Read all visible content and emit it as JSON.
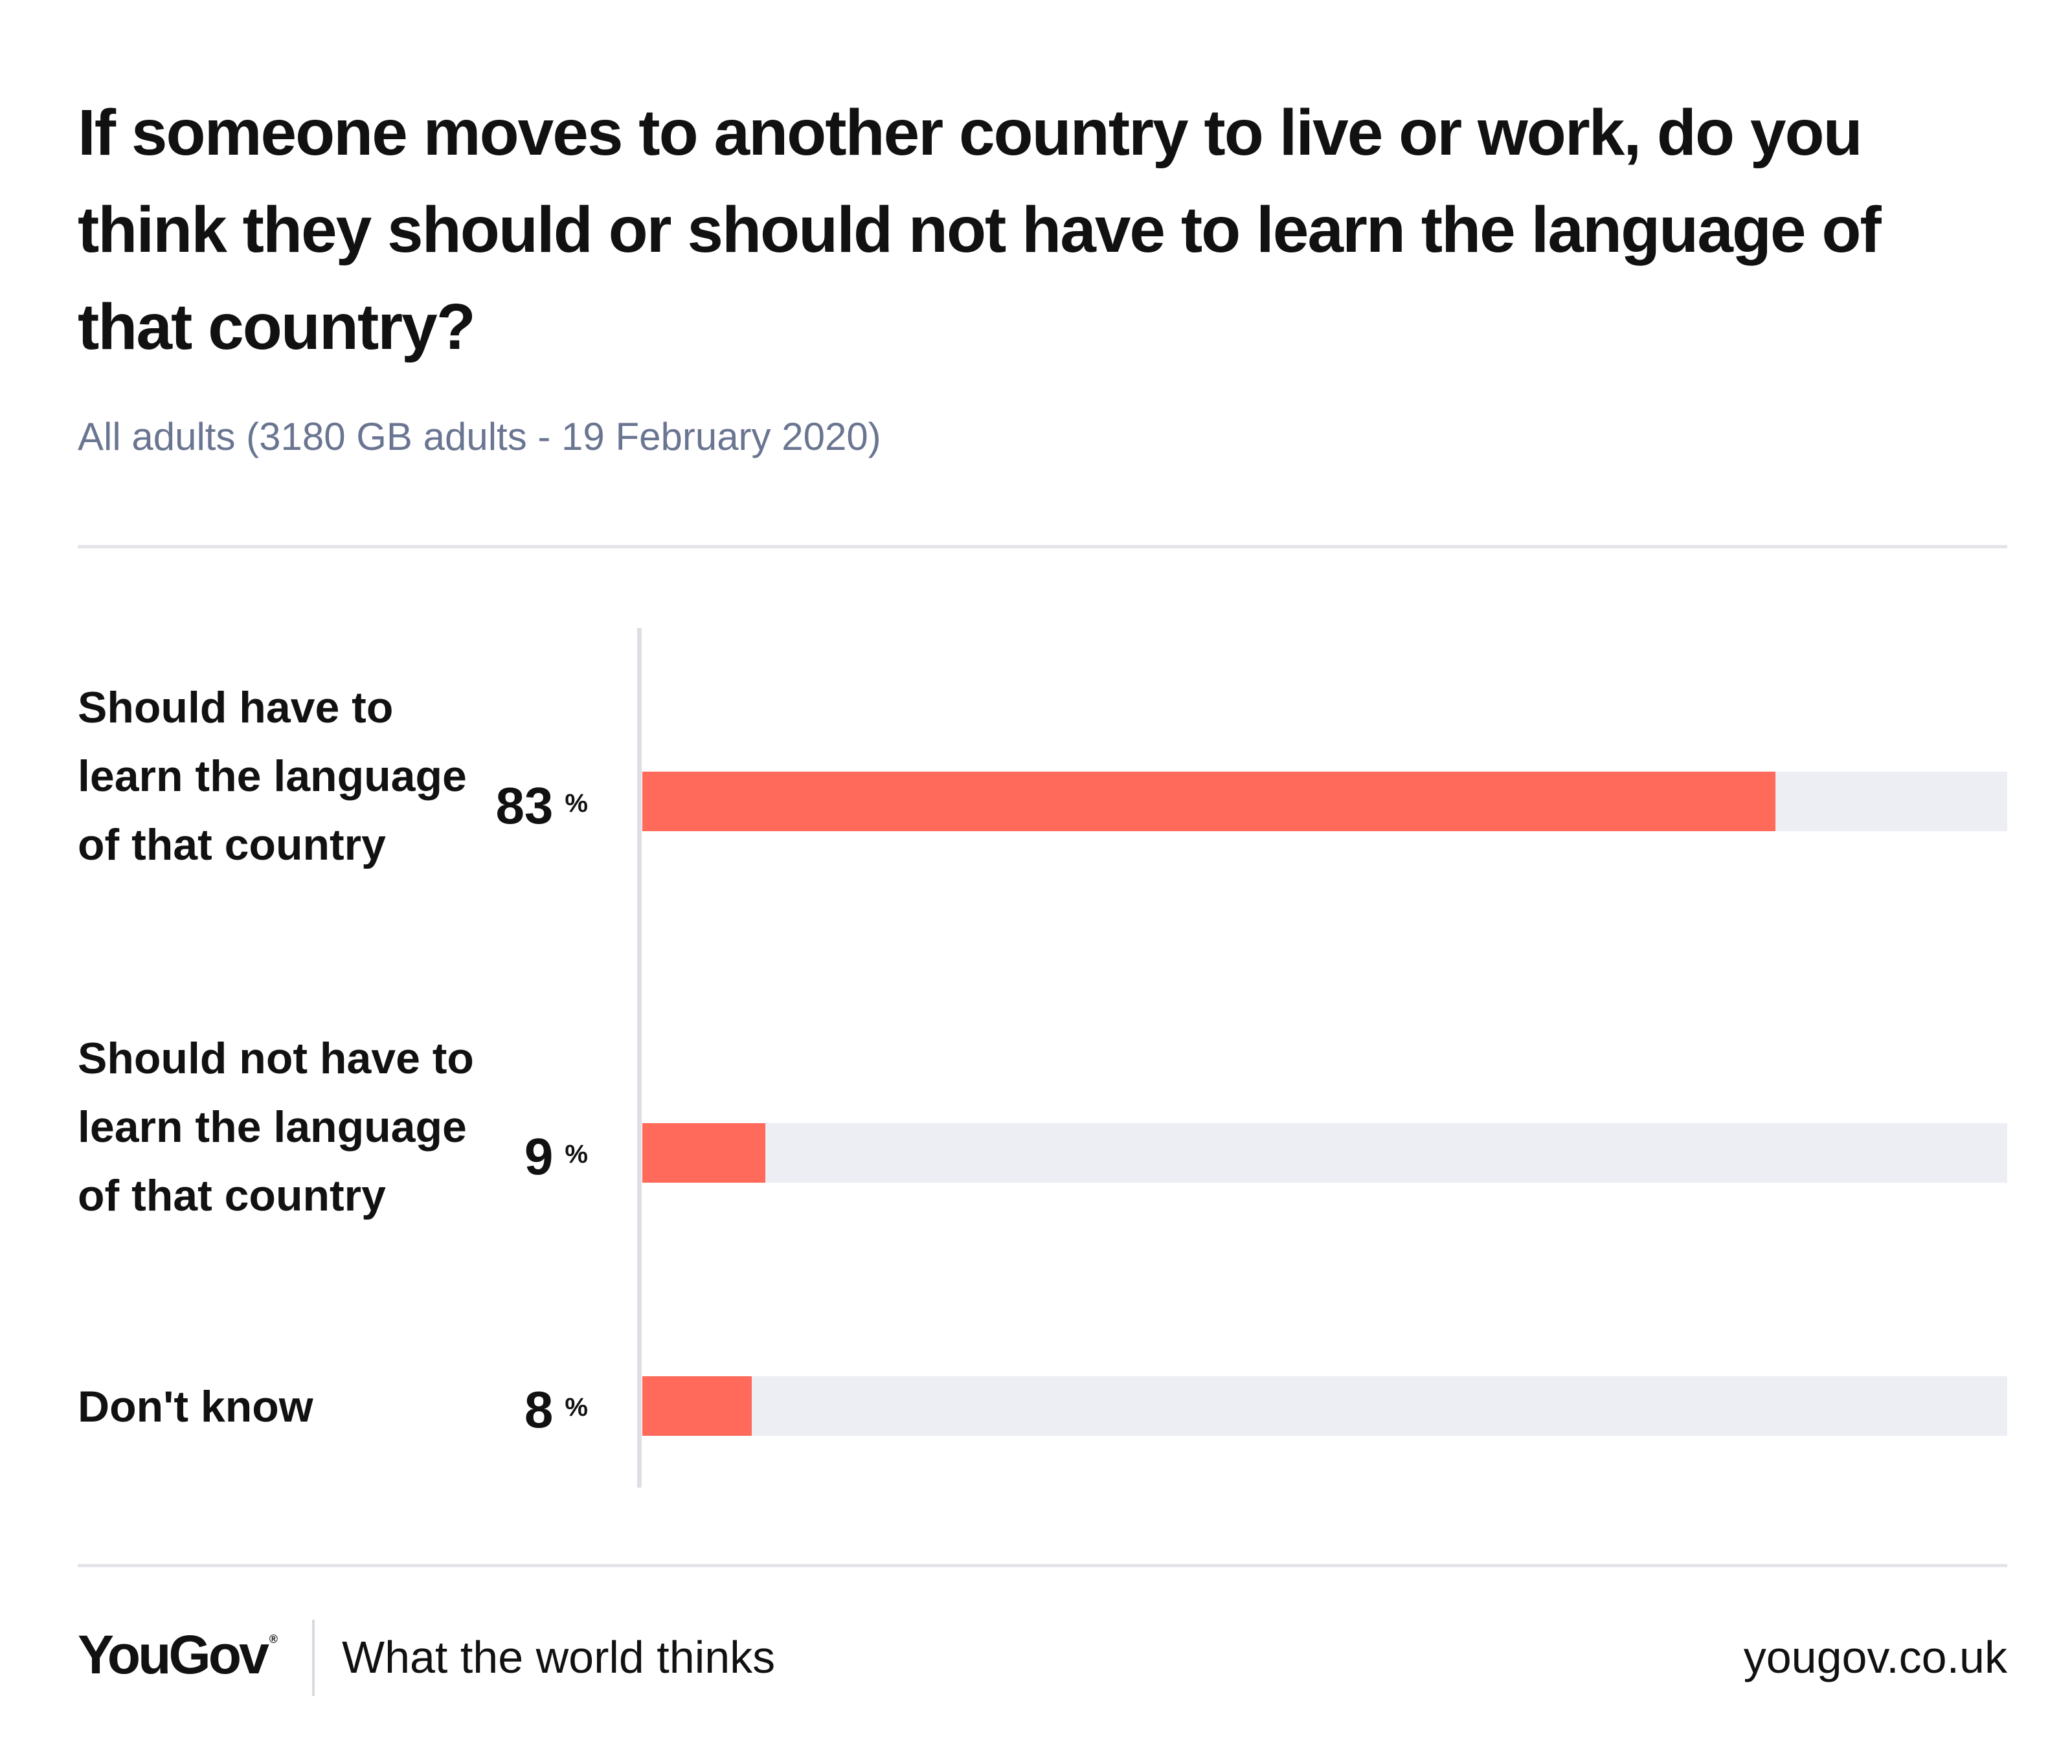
{
  "header": {
    "title": "If someone moves to another country to live or work, do you think they should or should not have to learn the language of that country?",
    "subtitle": "All adults (3180 GB adults - 19 February 2020)"
  },
  "chart_data": {
    "type": "bar",
    "orientation": "horizontal",
    "categories": [
      "Should have to learn the language of that country",
      "Should not have to learn the language of that country",
      "Don't know"
    ],
    "values": [
      83,
      9,
      8
    ],
    "unit": "%",
    "xlim": [
      0,
      100
    ],
    "colors": {
      "bar": "#ff6a5a",
      "track": "#eceef3"
    }
  },
  "footer": {
    "logo": "YouGov",
    "logo_mark": "®",
    "tagline": "What the world thinks",
    "site": "yougov.co.uk"
  }
}
